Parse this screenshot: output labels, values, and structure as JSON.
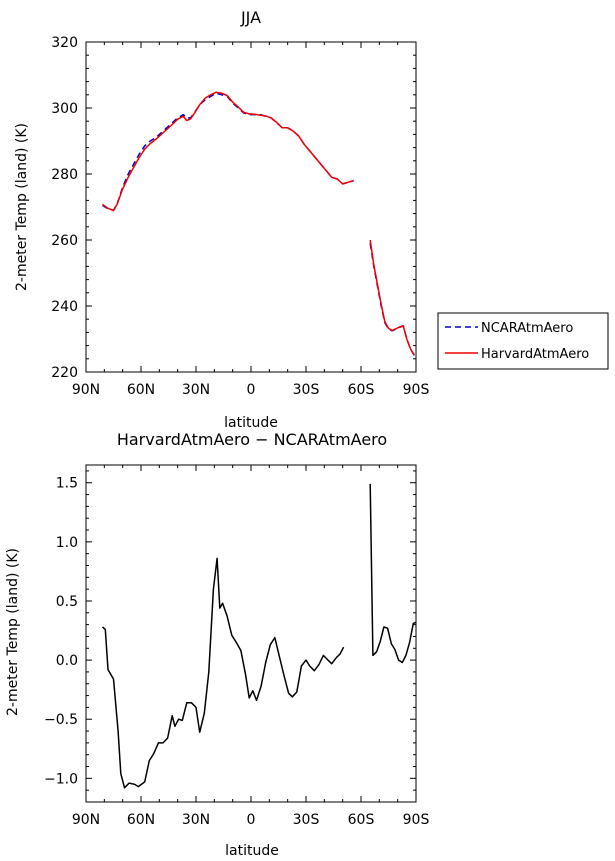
{
  "chart_data": [
    {
      "type": "line",
      "title": "JJA",
      "xlabel": "latitude",
      "ylabel": "2-meter Temp (land) (K)",
      "xlim": [
        90,
        -90
      ],
      "ylim": [
        220,
        320
      ],
      "x_ticks": [
        90,
        60,
        30,
        0,
        -30,
        -60,
        -90
      ],
      "x_tick_labels": [
        "90N",
        "60N",
        "30N",
        "0",
        "30S",
        "60S",
        "90S"
      ],
      "y_ticks": [
        220,
        240,
        260,
        280,
        300,
        320
      ],
      "y_tick_labels": [
        "220",
        "240",
        "260",
        "280",
        "300",
        "320"
      ],
      "legend_position": "outside-right",
      "series": [
        {
          "name": "NCARAtmAero",
          "color": "#0000cc",
          "dash": "dashed",
          "segments": [
            [
              [
                81,
                270.5
              ],
              [
                78,
                269.5
              ],
              [
                75,
                269
              ],
              [
                73,
                271
              ],
              [
                70,
                276
              ],
              [
                67,
                280
              ],
              [
                64,
                283
              ],
              [
                61,
                286
              ],
              [
                58,
                288.5
              ],
              [
                55,
                290
              ],
              [
                52,
                291
              ],
              [
                49,
                292.5
              ],
              [
                46,
                294
              ],
              [
                43,
                295.5
              ],
              [
                40,
                297
              ],
              [
                37,
                298
              ],
              [
                35,
                297
              ],
              [
                33,
                297
              ],
              [
                31,
                298.5
              ],
              [
                28,
                301
              ],
              [
                25,
                302.5
              ],
              [
                22,
                303.5
              ],
              [
                19,
                304.5
              ],
              [
                16,
                304
              ],
              [
                13,
                303.5
              ],
              [
                10,
                301.5
              ],
              [
                7,
                300
              ],
              [
                4,
                298.5
              ],
              [
                1,
                298
              ],
              [
                -2,
                298
              ],
              [
                -5,
                298
              ],
              [
                -8,
                297.5
              ],
              [
                -11,
                297
              ],
              [
                -14,
                295.5
              ],
              [
                -17,
                294
              ],
              [
                -20,
                294
              ],
              [
                -23,
                293
              ],
              [
                -26,
                291.5
              ],
              [
                -29,
                289
              ],
              [
                -32,
                287
              ],
              [
                -35,
                285
              ],
              [
                -38,
                283
              ],
              [
                -41,
                281
              ],
              [
                -44,
                279
              ],
              [
                -47,
                278.5
              ],
              [
                -50,
                277
              ],
              [
                -53,
                277.5
              ],
              [
                -56,
                278
              ]
            ],
            [
              [
                -65,
                259
              ],
              [
                -67,
                252
              ],
              [
                -69,
                246
              ],
              [
                -71,
                240
              ],
              [
                -73,
                235
              ],
              [
                -75,
                233
              ],
              [
                -77,
                232.5
              ],
              [
                -79,
                233
              ],
              [
                -81,
                233.5
              ],
              [
                -83,
                234
              ],
              [
                -85,
                230
              ],
              [
                -87,
                227
              ],
              [
                -89,
                225
              ]
            ]
          ]
        },
        {
          "name": "HarvardAtmAero",
          "color": "#ee0000",
          "dash": "solid",
          "segments": [
            [
              [
                81,
                270.8
              ],
              [
                78,
                269.6
              ],
              [
                75,
                268.9
              ],
              [
                73,
                270.9
              ],
              [
                70,
                275.5
              ],
              [
                67,
                279
              ],
              [
                64,
                282
              ],
              [
                61,
                285
              ],
              [
                58,
                287.5
              ],
              [
                55,
                289.2
              ],
              [
                52,
                290.5
              ],
              [
                49,
                292
              ],
              [
                46,
                293.5
              ],
              [
                43,
                295
              ],
              [
                40,
                296.6
              ],
              [
                37,
                297.5
              ],
              [
                35,
                296.2
              ],
              [
                33,
                296.7
              ],
              [
                31,
                298.3
              ],
              [
                28,
                301
              ],
              [
                25,
                303
              ],
              [
                22,
                304
              ],
              [
                19,
                304.8
              ],
              [
                16,
                304.5
              ],
              [
                13,
                303.8
              ],
              [
                10,
                301.8
              ],
              [
                7,
                300.3
              ],
              [
                4,
                298.7
              ],
              [
                1,
                298.2
              ],
              [
                -2,
                298.1
              ],
              [
                -5,
                297.8
              ],
              [
                -8,
                297.6
              ],
              [
                -11,
                297
              ],
              [
                -14,
                295.6
              ],
              [
                -17,
                294
              ],
              [
                -20,
                294
              ],
              [
                -23,
                293
              ],
              [
                -26,
                291.5
              ],
              [
                -29,
                289
              ],
              [
                -32,
                287
              ],
              [
                -35,
                285
              ],
              [
                -38,
                283
              ],
              [
                -41,
                281
              ],
              [
                -44,
                279
              ],
              [
                -47,
                278.5
              ],
              [
                -50,
                277
              ],
              [
                -53,
                277.5
              ],
              [
                -56,
                278
              ]
            ],
            [
              [
                -65,
                260
              ],
              [
                -67,
                252.5
              ],
              [
                -69,
                246.5
              ],
              [
                -71,
                240.5
              ],
              [
                -73,
                235.3
              ],
              [
                -75,
                233.2
              ],
              [
                -77,
                232.6
              ],
              [
                -79,
                233.1
              ],
              [
                -81,
                233.6
              ],
              [
                -83,
                234
              ],
              [
                -85,
                230
              ],
              [
                -87,
                227
              ],
              [
                -89,
                225.2
              ]
            ]
          ]
        }
      ]
    },
    {
      "type": "line",
      "title": "HarvardAtmAero − NCARAtmAero",
      "xlabel": "latitude",
      "ylabel": "2-meter Temp (land) (K)",
      "xlim": [
        90,
        -90
      ],
      "ylim": [
        -1.2,
        1.65
      ],
      "x_ticks": [
        90,
        60,
        30,
        0,
        -30,
        -60,
        -90
      ],
      "x_tick_labels": [
        "90N",
        "60N",
        "30N",
        "0",
        "30S",
        "60S",
        "90S"
      ],
      "y_ticks": [
        -1.0,
        -0.5,
        0.0,
        0.5,
        1.0,
        1.5
      ],
      "y_tick_labels": [
        "−1.0",
        "−0.5",
        "0.0",
        "0.5",
        "1.0",
        "1.5"
      ],
      "series": [
        {
          "color": "#000000",
          "dash": "solid",
          "segments": [
            [
              [
                81,
                0.28
              ],
              [
                79.5,
                0.26
              ],
              [
                78,
                -0.08
              ],
              [
                75,
                -0.16
              ],
              [
                72.5,
                -0.6
              ],
              [
                71,
                -0.96
              ],
              [
                69,
                -1.08
              ],
              [
                66.5,
                -1.04
              ],
              [
                63.5,
                -1.05
              ],
              [
                61.5,
                -1.07
              ],
              [
                58,
                -1.03
              ],
              [
                55.5,
                -0.85
              ],
              [
                53,
                -0.79
              ],
              [
                50.5,
                -0.7
              ],
              [
                48,
                -0.7
              ],
              [
                45.5,
                -0.66
              ],
              [
                43,
                -0.47
              ],
              [
                41.5,
                -0.56
              ],
              [
                39.5,
                -0.5
              ],
              [
                37.5,
                -0.51
              ],
              [
                35,
                -0.36
              ],
              [
                32.5,
                -0.36
              ],
              [
                30,
                -0.4
              ],
              [
                28,
                -0.61
              ],
              [
                25.5,
                -0.45
              ],
              [
                23,
                -0.1
              ],
              [
                20.5,
                0.6
              ],
              [
                18.5,
                0.86
              ],
              [
                17,
                0.44
              ],
              [
                15.5,
                0.48
              ],
              [
                13,
                0.37
              ],
              [
                10.5,
                0.21
              ],
              [
                8,
                0.15
              ],
              [
                5.5,
                0.08
              ],
              [
                3,
                -0.12
              ],
              [
                1,
                -0.32
              ],
              [
                -1,
                -0.26
              ],
              [
                -3,
                -0.34
              ],
              [
                -5.5,
                -0.22
              ],
              [
                -8,
                -0.02
              ],
              [
                -10.5,
                0.13
              ],
              [
                -13,
                0.19
              ],
              [
                -15.5,
                0.03
              ],
              [
                -18,
                -0.13
              ],
              [
                -20.5,
                -0.28
              ],
              [
                -22.5,
                -0.31
              ],
              [
                -25,
                -0.27
              ],
              [
                -27.5,
                -0.05
              ],
              [
                -30,
                0.0
              ],
              [
                -32,
                -0.05
              ],
              [
                -34.5,
                -0.09
              ],
              [
                -37,
                -0.04
              ],
              [
                -39.5,
                0.04
              ],
              [
                -42,
                0.0
              ],
              [
                -44,
                -0.03
              ],
              [
                -46.5,
                0.02
              ],
              [
                -48.5,
                0.05
              ],
              [
                -50.5,
                0.11
              ]
            ],
            [
              [
                -65,
                1.49
              ],
              [
                -66.5,
                0.04
              ],
              [
                -68.5,
                0.07
              ],
              [
                -70.5,
                0.16
              ],
              [
                -72.5,
                0.28
              ],
              [
                -74.5,
                0.27
              ],
              [
                -76.5,
                0.14
              ],
              [
                -78.5,
                0.09
              ],
              [
                -80.5,
                0.0
              ],
              [
                -82.5,
                -0.02
              ],
              [
                -84.5,
                0.04
              ],
              [
                -86.5,
                0.15
              ],
              [
                -88.5,
                0.31
              ],
              [
                -90,
                0.32
              ]
            ]
          ]
        }
      ]
    }
  ]
}
